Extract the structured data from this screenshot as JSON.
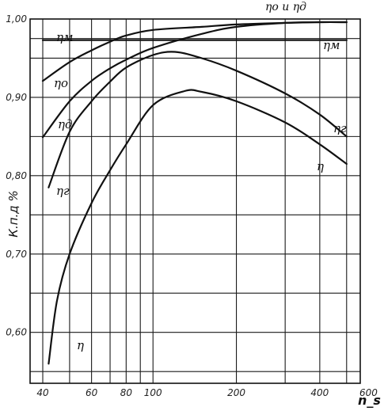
{
  "chart_data": {
    "type": "line",
    "title": "",
    "xlabel": "n_s",
    "ylabel": "К.п.д %",
    "x_scale": "log",
    "xlim": [
      36,
      560
    ],
    "ylim": [
      0.535,
      1.0
    ],
    "grid": true,
    "x_ticks": [
      {
        "value": 40,
        "label": "40"
      },
      {
        "value": 60,
        "label": "60"
      },
      {
        "value": 80,
        "label": "80"
      },
      {
        "value": 100,
        "label": "100"
      },
      {
        "value": 200,
        "label": "200"
      },
      {
        "value": 400,
        "label": "400"
      },
      {
        "value": 600,
        "label": "600"
      }
    ],
    "x_gridlines": [
      40,
      50,
      60,
      70,
      80,
      90,
      100,
      200,
      300,
      400,
      500
    ],
    "y_ticks": [
      {
        "value": 1.0,
        "label": "1,00"
      },
      {
        "value": 0.9,
        "label": "0,90"
      },
      {
        "value": 0.8,
        "label": "0,80"
      },
      {
        "value": 0.7,
        "label": "0,70"
      },
      {
        "value": 0.6,
        "label": "0,60"
      }
    ],
    "y_gridlines": [
      0.55,
      0.6,
      0.65,
      0.7,
      0.75,
      0.8,
      0.85,
      0.9,
      0.95,
      0.975,
      1.0
    ],
    "top_label": "ηо и ηд",
    "series": [
      {
        "name": "ηм",
        "x": [
          40,
          500
        ],
        "y": [
          0.973,
          0.973
        ]
      },
      {
        "name": "ηо",
        "x": [
          40,
          50,
          60,
          70,
          80,
          100,
          150,
          200,
          300,
          400,
          500
        ],
        "y": [
          0.921,
          0.945,
          0.96,
          0.971,
          0.979,
          0.986,
          0.99,
          0.993,
          0.995,
          0.996,
          0.996
        ]
      },
      {
        "name": "ηд",
        "x": [
          40,
          50,
          60,
          70,
          80,
          100,
          150,
          200,
          300,
          400,
          500
        ],
        "y": [
          0.849,
          0.895,
          0.921,
          0.937,
          0.948,
          0.963,
          0.981,
          0.99,
          0.995,
          0.996,
          0.996
        ]
      },
      {
        "name": "ηг",
        "x": [
          42,
          50,
          60,
          70,
          80,
          100,
          120,
          150,
          200,
          300,
          400,
          500
        ],
        "y": [
          0.785,
          0.856,
          0.895,
          0.92,
          0.938,
          0.954,
          0.958,
          0.95,
          0.934,
          0.905,
          0.878,
          0.85
        ]
      },
      {
        "name": "η",
        "x": [
          42,
          45,
          50,
          60,
          70,
          80,
          100,
          130,
          150,
          200,
          300,
          400,
          500
        ],
        "y": [
          0.56,
          0.64,
          0.7,
          0.765,
          0.807,
          0.84,
          0.89,
          0.908,
          0.907,
          0.895,
          0.868,
          0.84,
          0.815
        ]
      }
    ]
  }
}
